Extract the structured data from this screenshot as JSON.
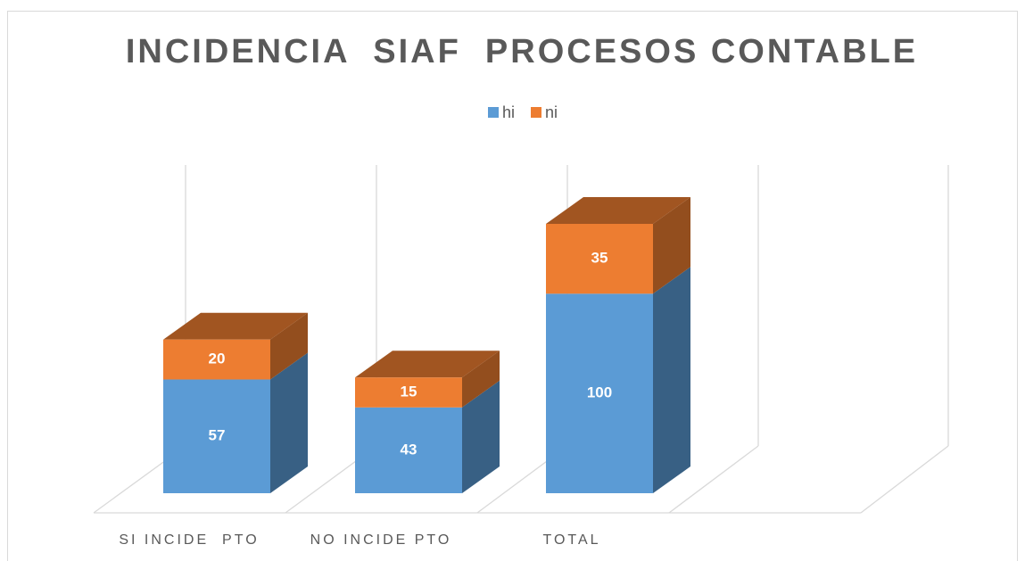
{
  "chart_data": {
    "type": "bar3d_stacked",
    "title": "INCIDENCIA  SIAF  PROCESOS CONTABLE",
    "categories": [
      "SI INCIDE  PTO",
      "NO INCIDE PTO",
      "TOTAL"
    ],
    "series": [
      {
        "name": "hi",
        "color": "#5b9bd5",
        "values": [
          57,
          43,
          100
        ]
      },
      {
        "name": "ni",
        "color": "#ed7d31",
        "values": [
          20,
          15,
          35
        ]
      }
    ],
    "legend": "top"
  }
}
